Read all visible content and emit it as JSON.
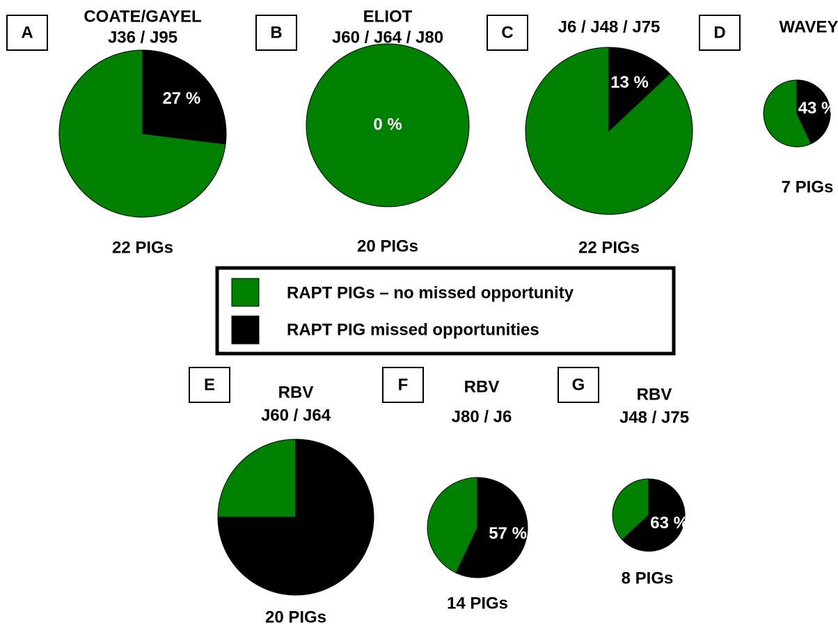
{
  "legend": {
    "items": [
      {
        "name": "RAPT PIGs – no missed opportunity",
        "color": "#008000"
      },
      {
        "name": "RAPT PIG missed opportunities",
        "color": "#000000"
      }
    ]
  },
  "chart_data": [
    {
      "type": "pie",
      "panel": "A",
      "title": [
        "COATE/GAYEL",
        "J36 / J95"
      ],
      "values": [
        73,
        27
      ],
      "value_labels": [
        null,
        "27 %"
      ],
      "footer": "22 PIGs"
    },
    {
      "type": "pie",
      "panel": "B",
      "title": [
        "ELIOT",
        "J60 / J64 / J80"
      ],
      "values": [
        100,
        0
      ],
      "value_labels": [
        null,
        "0 %"
      ],
      "footer": "20 PIGs"
    },
    {
      "type": "pie",
      "panel": "C",
      "title": [
        "J6 / J48 / J75"
      ],
      "values": [
        87,
        13
      ],
      "value_labels": [
        null,
        "13 %"
      ],
      "footer": "22 PIGs"
    },
    {
      "type": "pie",
      "panel": "D",
      "title": [
        "WAVEY"
      ],
      "values": [
        57,
        43
      ],
      "value_labels": [
        null,
        "43 %"
      ],
      "footer": "7 PIGs"
    },
    {
      "type": "pie",
      "panel": "E",
      "title": [
        "RBV",
        "J60 / J64"
      ],
      "values": [
        25,
        75
      ],
      "value_labels": [
        null,
        null
      ],
      "footer": "20 PIGs"
    },
    {
      "type": "pie",
      "panel": "F",
      "title": [
        "RBV",
        "J80 / J6"
      ],
      "values": [
        43,
        57
      ],
      "value_labels": [
        null,
        "57 %"
      ],
      "footer": "14 PIGs"
    },
    {
      "type": "pie",
      "panel": "G",
      "title": [
        "RBV",
        "J48 / J75"
      ],
      "values": [
        37,
        63
      ],
      "value_labels": [
        null,
        "63 %"
      ],
      "footer": "8 PIGs"
    }
  ]
}
